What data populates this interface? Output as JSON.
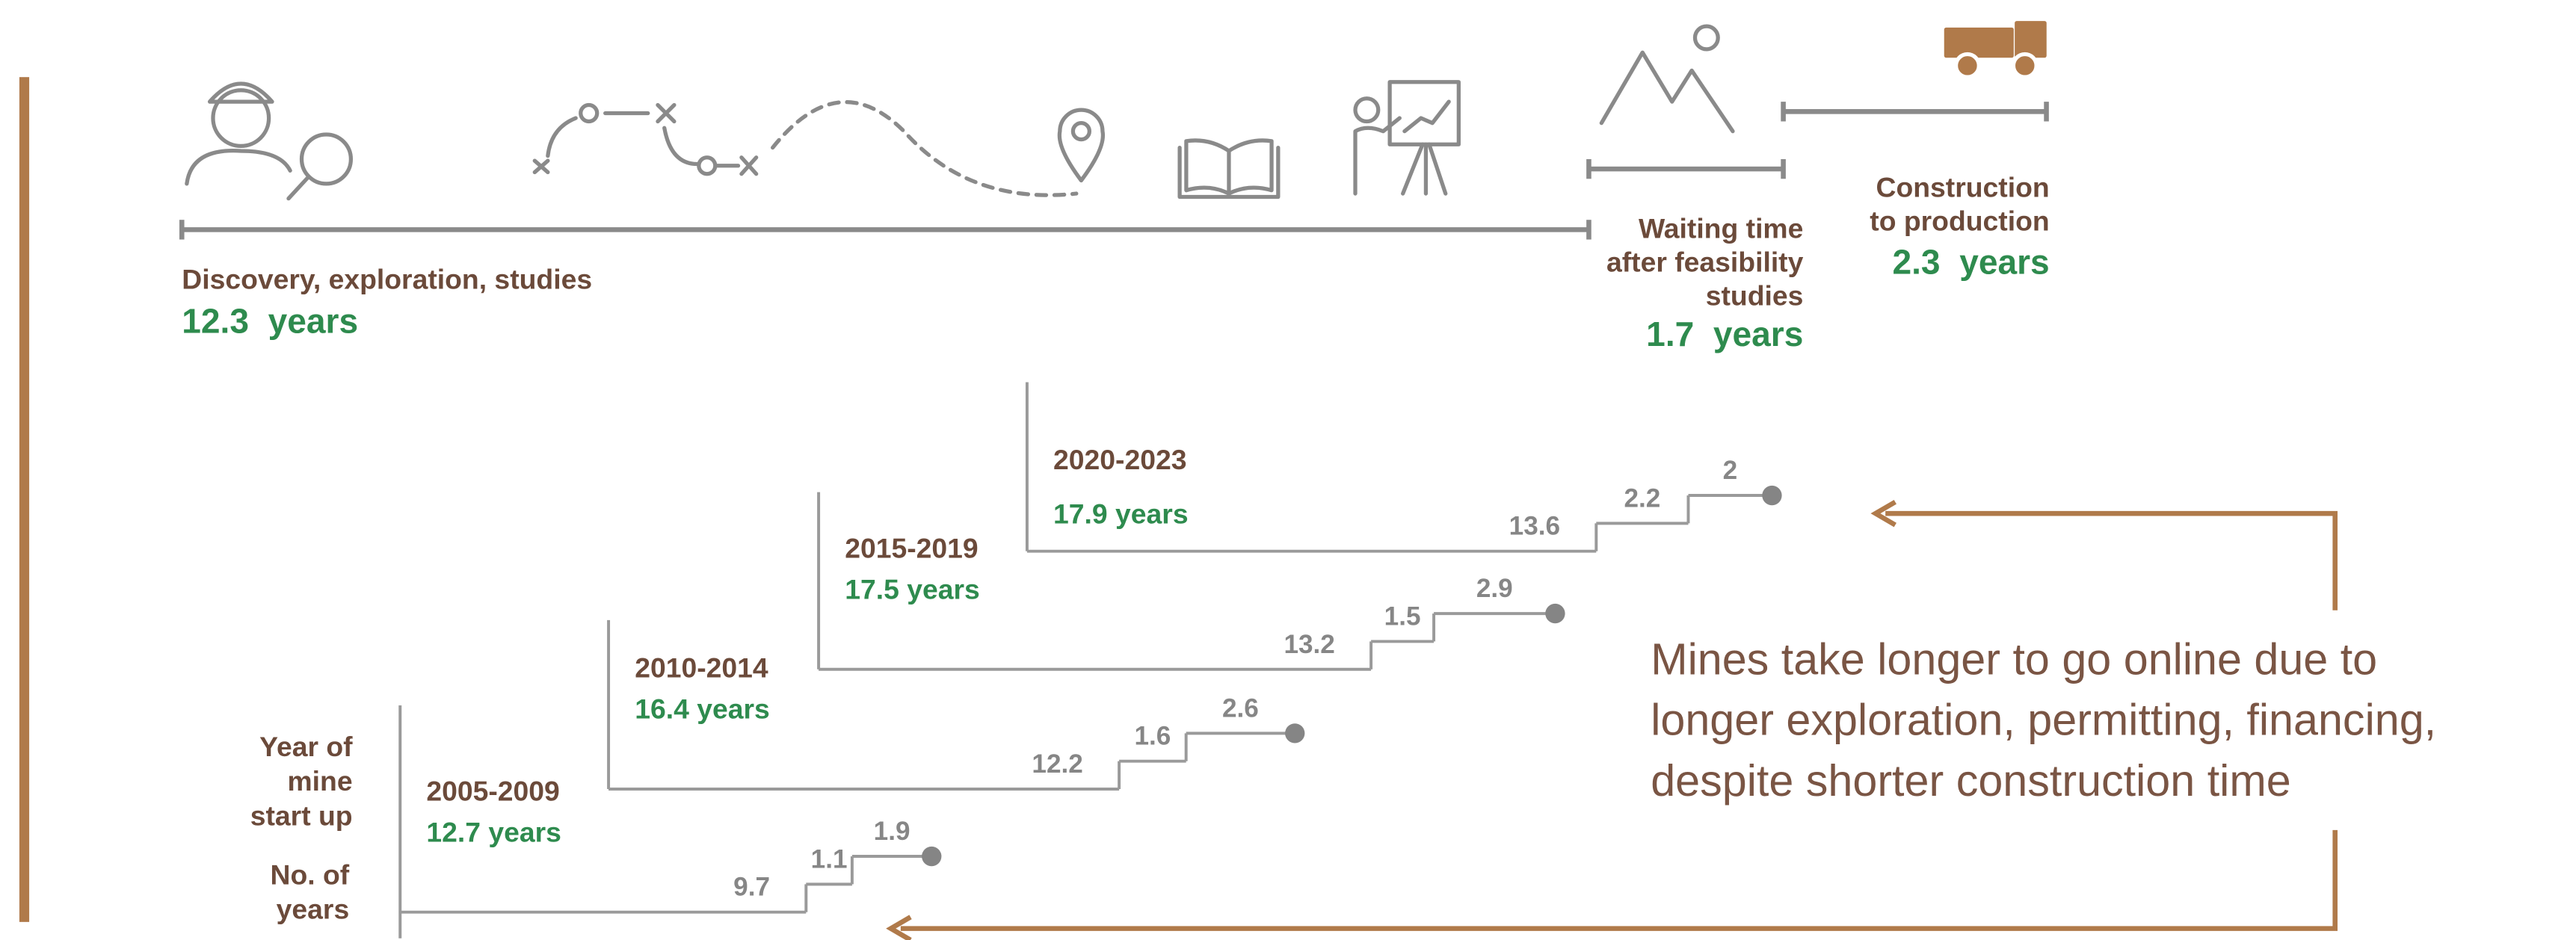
{
  "chart_data": {
    "type": "step-timeline",
    "unit": "years",
    "phases": [
      {
        "label": [
          "Discovery, exploration, studies"
        ],
        "value": 12.3
      },
      {
        "label": [
          "Waiting time",
          "after feasibility",
          "studies"
        ],
        "value": 1.7
      },
      {
        "label": [
          "Construction",
          "to production"
        ],
        "value": 2.3
      }
    ],
    "row_label": [
      "Year of",
      "mine",
      "start up"
    ],
    "value_label": [
      "No. of",
      "years"
    ],
    "periods": [
      {
        "name": "2005-2009",
        "total": 12.7,
        "values": [
          9.7,
          1.1,
          1.9
        ]
      },
      {
        "name": "2010-2014",
        "total": 16.4,
        "values": [
          12.2,
          1.6,
          2.6
        ]
      },
      {
        "name": "2015-2019",
        "total": 17.5,
        "values": [
          13.2,
          1.5,
          2.9
        ]
      },
      {
        "name": "2020-2023",
        "total": 17.9,
        "values": [
          13.6,
          2.2,
          2.0
        ]
      }
    ],
    "annotation": [
      "Mines take longer to go online due to",
      "longer exploration, permitting, financing,",
      "despite shorter construction time"
    ]
  }
}
